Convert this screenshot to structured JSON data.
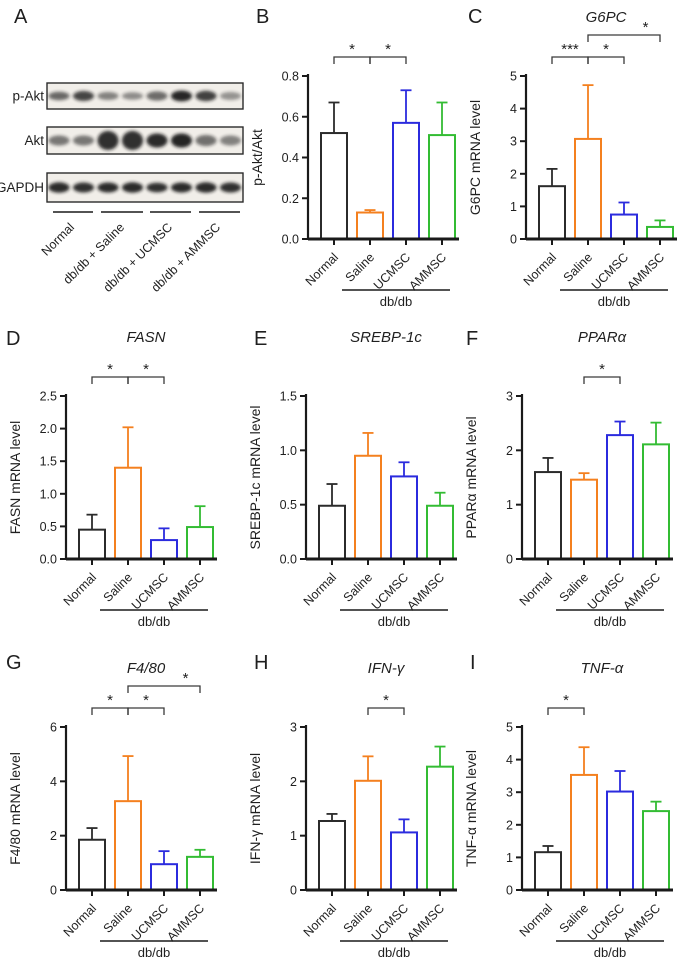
{
  "figure": {
    "background": "#ffffff",
    "panel_letters": [
      "A",
      "B",
      "C",
      "D",
      "E",
      "F",
      "G",
      "H",
      "I"
    ]
  },
  "colors": {
    "black": "#2b2b2b",
    "orange": "#F4801F",
    "blue": "#2B2BDE",
    "green": "#33BC33",
    "axis": "#1a1a1a",
    "bracket": "#3a3a3a"
  },
  "panel_a": {
    "letter": "A",
    "rows": [
      {
        "label": "p-Akt",
        "band_opacity": [
          0.62,
          0.78,
          0.5,
          0.45,
          0.6,
          0.92,
          0.8,
          0.42
        ],
        "band_height": [
          4.2,
          5.0,
          4.0,
          3.8,
          4.6,
          5.4,
          5.2,
          4.0
        ]
      },
      {
        "label": "Akt",
        "band_opacity": [
          0.55,
          0.55,
          0.88,
          0.88,
          0.9,
          0.93,
          0.58,
          0.5
        ],
        "band_height": [
          5.0,
          5.0,
          9.5,
          9.5,
          7.0,
          7.0,
          5.5,
          5.0
        ]
      },
      {
        "label": "GAPDH",
        "band_opacity": [
          0.9,
          0.88,
          0.9,
          0.9,
          0.88,
          0.9,
          0.9,
          0.88
        ],
        "band_height": [
          5.2,
          5.0,
          5.0,
          5.2,
          4.8,
          5.0,
          5.2,
          5.0
        ]
      }
    ],
    "lane_group_labels": [
      "Normal",
      "db/db + Saline",
      "db/db + UCMSC",
      "db/db + AMMSC"
    ]
  },
  "chart_data": [
    {
      "type": "bar",
      "letter": "B",
      "title": "",
      "title_italic": false,
      "ylabel": "p-Akt/Akt",
      "ylim": [
        0,
        0.8
      ],
      "yticks": [
        "0.0",
        "0.2",
        "0.4",
        "0.6",
        "0.8"
      ],
      "categories": [
        "Normal",
        "Saline",
        "UCMSC",
        "AMMSC"
      ],
      "values": [
        0.52,
        0.13,
        0.57,
        0.51
      ],
      "errors_upper": [
        0.15,
        0.012,
        0.16,
        0.16
      ],
      "bar_color_keys": [
        "black",
        "orange",
        "blue",
        "green"
      ],
      "group_label": "db/db",
      "significance": [
        {
          "a": 0,
          "b": 1,
          "label": "*",
          "level": 0
        },
        {
          "a": 1,
          "b": 2,
          "label": "*",
          "level": 0
        }
      ]
    },
    {
      "type": "bar",
      "letter": "C",
      "title": "G6PC",
      "title_italic": true,
      "ylabel": "G6PC mRNA level",
      "ylim": [
        0,
        5
      ],
      "yticks": [
        "0",
        "1",
        "2",
        "3",
        "4",
        "5"
      ],
      "categories": [
        "Normal",
        "Saline",
        "UCMSC",
        "AMMSC"
      ],
      "values": [
        1.62,
        3.07,
        0.75,
        0.37
      ],
      "errors_upper": [
        0.53,
        1.65,
        0.37,
        0.2
      ],
      "bar_color_keys": [
        "black",
        "orange",
        "blue",
        "green"
      ],
      "group_label": "db/db",
      "significance": [
        {
          "a": 0,
          "b": 1,
          "label": "***",
          "level": 0
        },
        {
          "a": 1,
          "b": 2,
          "label": "*",
          "level": 0
        },
        {
          "a": 1,
          "b": 3,
          "label": "*",
          "level": 1
        }
      ]
    },
    {
      "type": "bar",
      "letter": "D",
      "title": "FASN",
      "title_italic": true,
      "ylabel": "FASN mRNA level",
      "ylim": [
        0,
        2.5
      ],
      "yticks": [
        "0.0",
        "0.5",
        "1.0",
        "1.5",
        "2.0",
        "2.5"
      ],
      "categories": [
        "Normal",
        "Saline",
        "UCMSC",
        "AMMSC"
      ],
      "values": [
        0.45,
        1.4,
        0.29,
        0.49
      ],
      "errors_upper": [
        0.23,
        0.62,
        0.18,
        0.32
      ],
      "bar_color_keys": [
        "black",
        "orange",
        "blue",
        "green"
      ],
      "group_label": "db/db",
      "significance": [
        {
          "a": 0,
          "b": 1,
          "label": "*",
          "level": 0
        },
        {
          "a": 1,
          "b": 2,
          "label": "*",
          "level": 0
        }
      ]
    },
    {
      "type": "bar",
      "letter": "E",
      "title": "SREBP-1c",
      "title_italic": true,
      "ylabel": "SREBP-1c mRNA level",
      "ylim": [
        0,
        1.5
      ],
      "yticks": [
        "0.0",
        "0.5",
        "1.0",
        "1.5"
      ],
      "categories": [
        "Normal",
        "Saline",
        "UCMSC",
        "AMMSC"
      ],
      "values": [
        0.49,
        0.95,
        0.76,
        0.49
      ],
      "errors_upper": [
        0.2,
        0.21,
        0.13,
        0.12
      ],
      "bar_color_keys": [
        "black",
        "orange",
        "blue",
        "green"
      ],
      "group_label": "db/db",
      "significance": []
    },
    {
      "type": "bar",
      "letter": "F",
      "title": "PPARα",
      "title_italic": true,
      "ylabel": "PPARα mRNA level",
      "ylim": [
        0,
        3
      ],
      "yticks": [
        "0",
        "1",
        "2",
        "3"
      ],
      "categories": [
        "Normal",
        "Saline",
        "UCMSC",
        "AMMSC"
      ],
      "values": [
        1.6,
        1.46,
        2.28,
        2.11
      ],
      "errors_upper": [
        0.26,
        0.12,
        0.25,
        0.4
      ],
      "bar_color_keys": [
        "black",
        "orange",
        "blue",
        "green"
      ],
      "group_label": "db/db",
      "significance": [
        {
          "a": 1,
          "b": 2,
          "label": "*",
          "level": 0
        }
      ]
    },
    {
      "type": "bar",
      "letter": "G",
      "title": "F4/80",
      "title_italic": true,
      "ylabel": "F4/80 mRNA level",
      "ylim": [
        0,
        6
      ],
      "yticks": [
        "0",
        "2",
        "4",
        "6"
      ],
      "categories": [
        "Normal",
        "Saline",
        "UCMSC",
        "AMMSC"
      ],
      "values": [
        1.85,
        3.27,
        0.95,
        1.22
      ],
      "errors_upper": [
        0.43,
        1.66,
        0.48,
        0.26
      ],
      "bar_color_keys": [
        "black",
        "orange",
        "blue",
        "green"
      ],
      "group_label": "db/db",
      "significance": [
        {
          "a": 0,
          "b": 1,
          "label": "*",
          "level": 0
        },
        {
          "a": 1,
          "b": 2,
          "label": "*",
          "level": 0
        },
        {
          "a": 1,
          "b": 3,
          "label": "*",
          "level": 1
        }
      ]
    },
    {
      "type": "bar",
      "letter": "H",
      "title": "IFN-γ",
      "title_italic": true,
      "ylabel": "IFN-γ mRNA level",
      "ylim": [
        0,
        3
      ],
      "yticks": [
        "0",
        "1",
        "2",
        "3"
      ],
      "categories": [
        "Normal",
        "Saline",
        "UCMSC",
        "AMMSC"
      ],
      "values": [
        1.27,
        2.01,
        1.06,
        2.27
      ],
      "errors_upper": [
        0.13,
        0.45,
        0.24,
        0.37
      ],
      "bar_color_keys": [
        "black",
        "orange",
        "blue",
        "green"
      ],
      "group_label": "db/db",
      "significance": [
        {
          "a": 1,
          "b": 2,
          "label": "*",
          "level": 0
        }
      ]
    },
    {
      "type": "bar",
      "letter": "I",
      "title": "TNF-α",
      "title_italic": true,
      "ylabel": "TNF-α mRNA level",
      "ylim": [
        0,
        5
      ],
      "yticks": [
        "0",
        "1",
        "2",
        "3",
        "4",
        "5"
      ],
      "categories": [
        "Normal",
        "Saline",
        "UCMSC",
        "AMMSC"
      ],
      "values": [
        1.16,
        3.53,
        3.02,
        2.42
      ],
      "errors_upper": [
        0.19,
        0.85,
        0.63,
        0.29
      ],
      "bar_color_keys": [
        "black",
        "orange",
        "blue",
        "green"
      ],
      "group_label": "db/db",
      "significance": [
        {
          "a": 0,
          "b": 1,
          "label": "*",
          "level": 0
        }
      ]
    }
  ]
}
